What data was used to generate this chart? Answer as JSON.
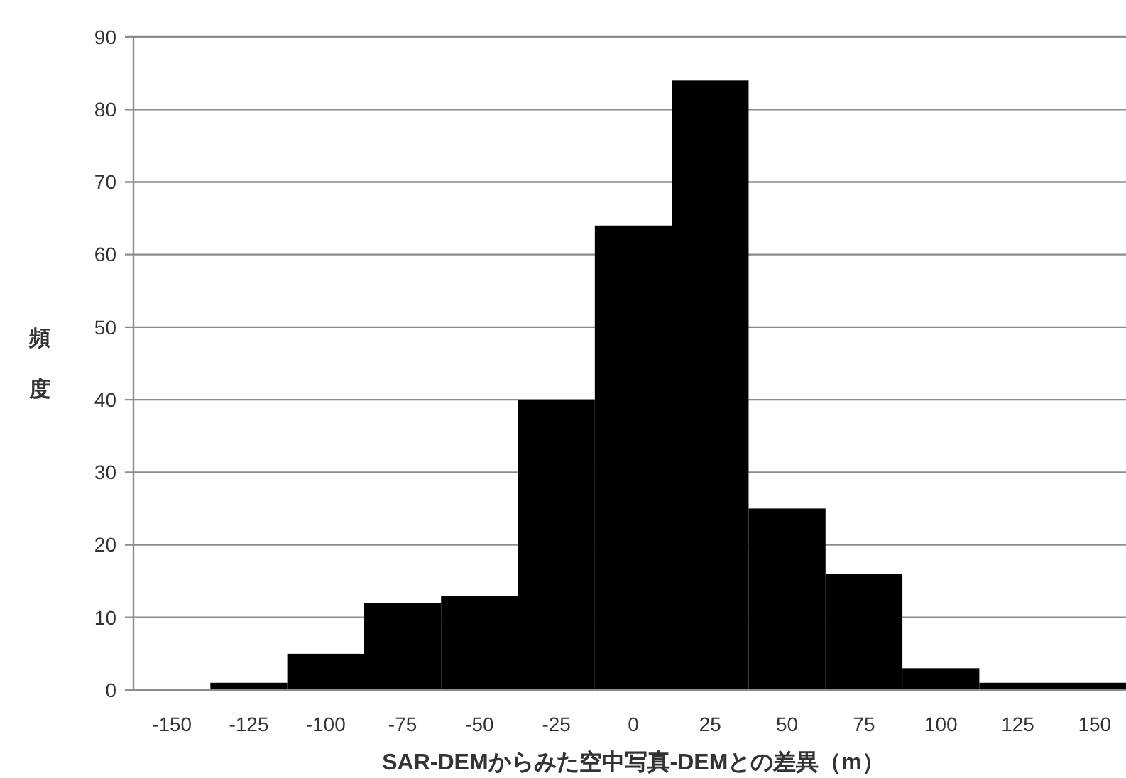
{
  "chart_data": {
    "type": "bar",
    "xlabel": "SAR-DEMからみた空中写真-DEMとの差異（m）",
    "ylabel": "頻度",
    "categories": [
      "-150",
      "-125",
      "-100",
      "-75",
      "-50",
      "-25",
      "0",
      "25",
      "50",
      "75",
      "100",
      "125",
      "150"
    ],
    "values": [
      0,
      1,
      5,
      12,
      13,
      40,
      64,
      84,
      25,
      16,
      3,
      1,
      1
    ],
    "color": "#000000",
    "ylim": [
      0,
      90
    ],
    "yticks": [
      0,
      10,
      20,
      30,
      40,
      50,
      60,
      70,
      80,
      90
    ],
    "grid": "y"
  }
}
